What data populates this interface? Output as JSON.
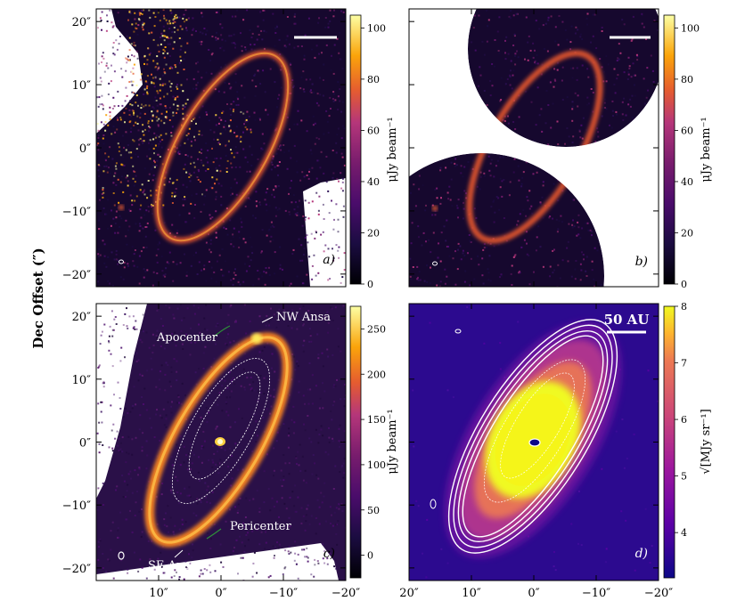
{
  "figure": {
    "ylabel": "Dec Offset (″)",
    "x_ticks_cd": [
      "10″",
      "0″",
      "−10″",
      "−20″"
    ],
    "x_ticks_d_extra": "20″",
    "y_ticks_top": [
      "20″",
      "10″",
      "0″",
      "−10″",
      "−20″"
    ],
    "y_ticks_bottom": [
      "20″",
      "10″",
      "0″",
      "−10″",
      "−20″"
    ]
  },
  "panels": [
    {
      "id": "a",
      "label": "a)",
      "colorbar_label": "μJy beam⁻¹",
      "cbar_ticks": [
        "0",
        "20",
        "40",
        "60",
        "80",
        "100"
      ],
      "cbar_max": 105
    },
    {
      "id": "b",
      "label": "b)",
      "colorbar_label": "μJy beam⁻¹",
      "cbar_ticks": [
        "0",
        "20",
        "40",
        "60",
        "80",
        "100"
      ],
      "cbar_max": 105
    },
    {
      "id": "c",
      "label": "c)",
      "colorbar_label": "μJy beam⁻¹",
      "cbar_ticks": [
        "0",
        "50",
        "100",
        "150",
        "200",
        "250"
      ],
      "cbar_max": 275,
      "annotations": {
        "nw": "NW Ansa",
        "apo": "Apocenter",
        "peri": "Pericenter",
        "se": "SE Ansa"
      }
    },
    {
      "id": "d",
      "label": "d)",
      "colorbar_label": "√[MJy sr⁻¹]",
      "cbar_ticks": [
        "4",
        "5",
        "6",
        "7",
        "8"
      ],
      "cbar_min": 3.2,
      "cbar_max": 8,
      "scale_bar": "50 AU"
    }
  ],
  "colors": {
    "inferno_dark": "#000004",
    "inferno_mid": "#b5367a",
    "inferno_bright": "#fcffa4",
    "plasma_dark": "#0d0887",
    "plasma_bright": "#f0f921"
  }
}
